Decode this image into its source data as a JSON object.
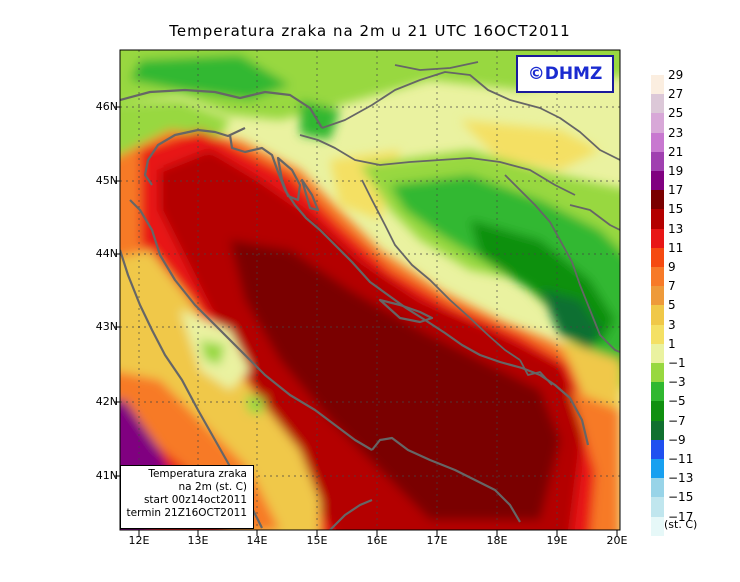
{
  "title": "Temperatura zraka na 2m u 21 UTC 16OCT2011",
  "logo": "©DHMZ",
  "info": {
    "line1": "Temperatura zraka",
    "line2": "na 2m (st. C)",
    "line3": "start 00z14oct2011",
    "line4": "termin 21Z16OCT2011"
  },
  "lat_labels": [
    "46N",
    "45N",
    "44N",
    "43N",
    "42N",
    "41N"
  ],
  "lon_labels": [
    "12E",
    "13E",
    "14E",
    "15E",
    "16E",
    "17E",
    "18E",
    "19E",
    "20E"
  ],
  "legend": {
    "unit": "(st. C)",
    "labels": [
      "29",
      "27",
      "25",
      "23",
      "21",
      "19",
      "17",
      "15",
      "13",
      "11",
      "9",
      "7",
      "5",
      "3",
      "1",
      "−1",
      "−3",
      "−5",
      "−7",
      "−9",
      "−11",
      "−13",
      "−15",
      "−17"
    ],
    "colors": [
      "#fbeee0",
      "#dcc8d8",
      "#d8a8d8",
      "#c878d0",
      "#a040b0",
      "#800080",
      "#7a0000",
      "#b40000",
      "#e81616",
      "#f54a10",
      "#f77a28",
      "#ee9a3a",
      "#f0c848",
      "#f4e064",
      "#eaf2a0",
      "#98d840",
      "#30b830",
      "#109010",
      "#107030",
      "#2050f0",
      "#18a0f0",
      "#98d4e8",
      "#c0e6ee",
      "#e6f8f8"
    ]
  }
}
